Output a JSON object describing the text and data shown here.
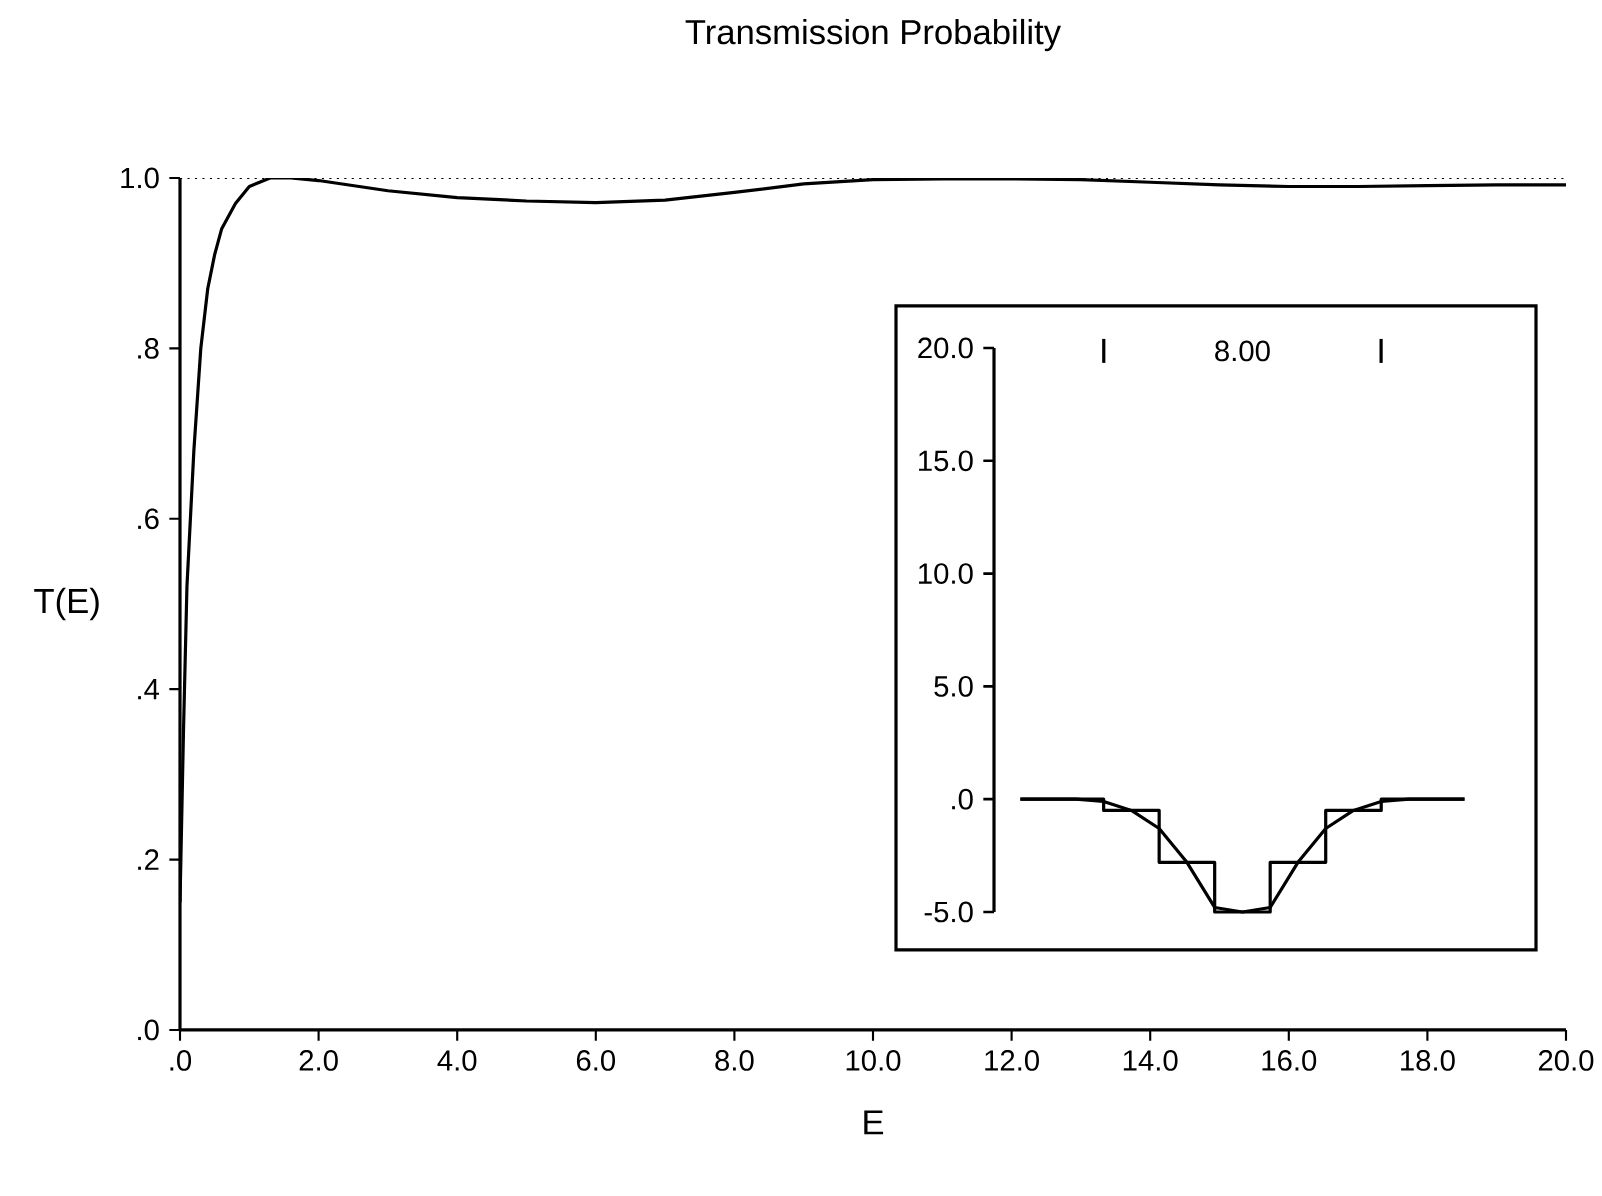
{
  "chart_data": [
    {
      "type": "line",
      "title": "Transmission Probability",
      "xlabel": "E",
      "ylabel": "T(E)",
      "x": [
        0,
        0.05,
        0.1,
        0.2,
        0.3,
        0.4,
        0.5,
        0.6,
        0.8,
        1.0,
        1.3,
        1.6,
        2,
        3,
        4,
        5,
        6,
        7,
        8,
        9,
        10,
        11,
        12,
        13,
        14,
        15,
        16,
        17,
        18,
        19,
        20
      ],
      "values": [
        0.15,
        0.35,
        0.52,
        0.68,
        0.8,
        0.87,
        0.91,
        0.94,
        0.97,
        0.99,
        1.0,
        1.0,
        0.997,
        0.985,
        0.977,
        0.973,
        0.971,
        0.974,
        0.983,
        0.993,
        0.998,
        0.999,
        0.999,
        0.998,
        0.995,
        0.992,
        0.99,
        0.99,
        0.991,
        0.992,
        0.992
      ],
      "color": "#000000",
      "xlim": [
        0,
        20
      ],
      "ylim": [
        0,
        1.0
      ],
      "xticks": [
        {
          "value": 0,
          "label": ".0"
        },
        {
          "value": 2,
          "label": "2.0"
        },
        {
          "value": 4,
          "label": "4.0"
        },
        {
          "value": 6,
          "label": "6.0"
        },
        {
          "value": 8,
          "label": "8.0"
        },
        {
          "value": 10,
          "label": "10.0"
        },
        {
          "value": 12,
          "label": "12.0"
        },
        {
          "value": 14,
          "label": "14.0"
        },
        {
          "value": 16,
          "label": "16.0"
        },
        {
          "value": 18,
          "label": "18.0"
        },
        {
          "value": 20,
          "label": "20.0"
        }
      ],
      "yticks": [
        {
          "value": 0,
          "label": ".0"
        },
        {
          "value": 0.2,
          "label": ".2"
        },
        {
          "value": 0.4,
          "label": ".4"
        },
        {
          "value": 0.6,
          "label": ".6"
        },
        {
          "value": 0.8,
          "label": ".8"
        },
        {
          "value": 1.0,
          "label": "1.0"
        }
      ],
      "ref_lines": [
        {
          "axis": "y",
          "value": 1.0,
          "line_style": "dotted"
        }
      ]
    },
    {
      "type": "line",
      "categories": [
        null,
        null,
        null,
        null,
        null,
        null,
        null,
        null,
        null,
        null,
        null,
        null,
        null,
        null,
        null,
        null,
        null
      ],
      "series": [
        {
          "type": "line",
          "color": "#000000",
          "values": [
            0,
            0,
            0,
            -0.1,
            -0.5,
            -1.3,
            -2.8,
            -4.8,
            -5.0,
            -4.8,
            -2.8,
            -1.3,
            -0.5,
            -0.1,
            0,
            0,
            0
          ]
        },
        {
          "type": "step",
          "color": "#000000",
          "values": [
            0,
            0,
            0,
            -0.5,
            -0.5,
            -2.8,
            -2.8,
            -5,
            -5,
            -2.8,
            -2.8,
            -0.5,
            -0.5,
            0,
            0,
            0,
            0
          ]
        }
      ],
      "ylim": [
        -5,
        20
      ],
      "yticks": [
        {
          "value": -5,
          "label": "-5.0"
        },
        {
          "value": 0,
          "label": ".0"
        },
        {
          "value": 5,
          "label": "5.0"
        },
        {
          "value": 10,
          "label": "10.0"
        },
        {
          "value": 15,
          "label": "15.0"
        },
        {
          "value": 20,
          "label": "20.0"
        }
      ],
      "tick_labels": "y",
      "annotations": [
        "8.00"
      ]
    }
  ]
}
